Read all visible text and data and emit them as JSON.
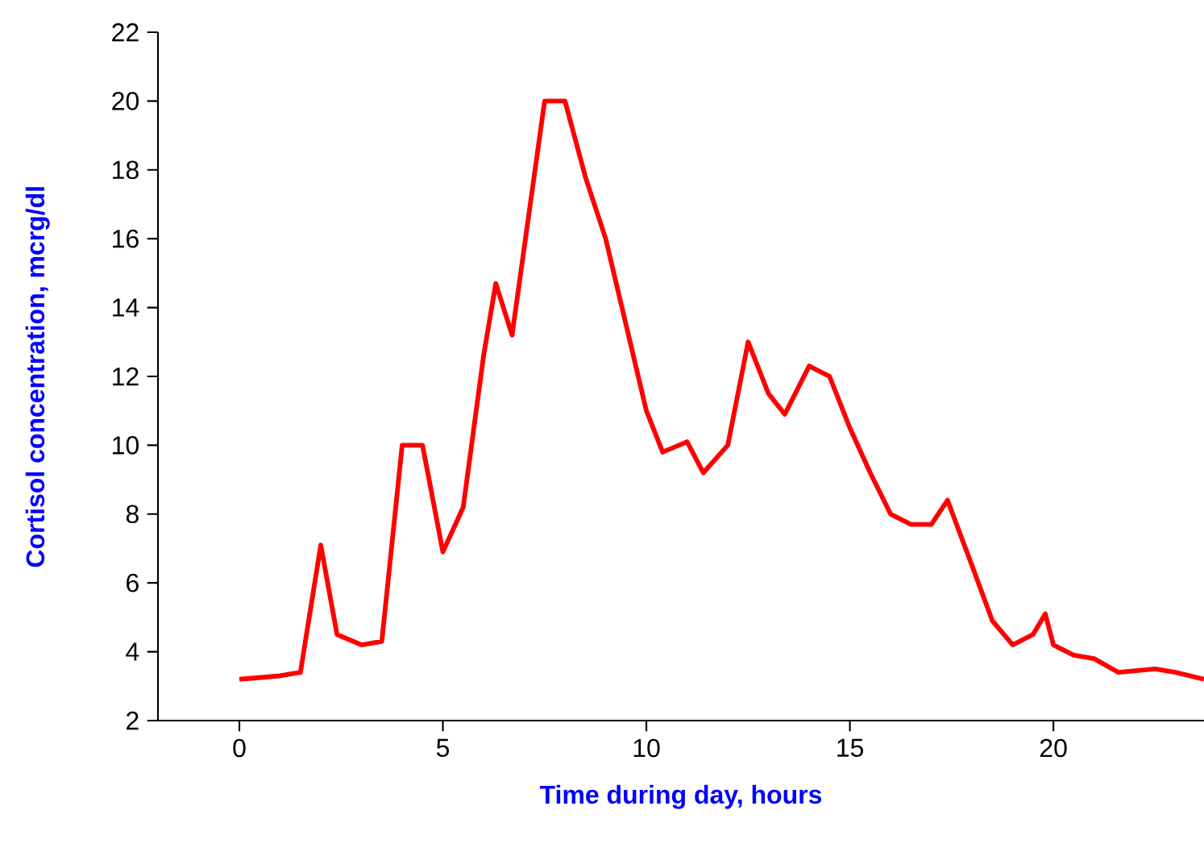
{
  "chart_data": {
    "type": "line",
    "xlabel": "Time during day, hours",
    "ylabel": "Cortisol concentration, mcrg/dl",
    "x": [
      0,
      1,
      1.5,
      2.0,
      2.4,
      3,
      3.5,
      4,
      4.5,
      5,
      5.5,
      6,
      6.3,
      6.7,
      7.5,
      8,
      8.5,
      9,
      10,
      10.4,
      11,
      11.4,
      12,
      12.5,
      13,
      13.4,
      14,
      14.5,
      15,
      15.5,
      16,
      16.5,
      17,
      17.4,
      18,
      18.5,
      19,
      19.5,
      19.8,
      20,
      20.5,
      21,
      21.6,
      22.5,
      23,
      23.7
    ],
    "values": [
      3.2,
      3.3,
      3.4,
      7.1,
      4.5,
      4.2,
      4.3,
      10.0,
      10.0,
      6.9,
      8.2,
      12.6,
      14.7,
      13.2,
      20.0,
      20.0,
      17.8,
      16.0,
      11.0,
      9.8,
      10.1,
      9.2,
      10.0,
      13.0,
      11.5,
      10.9,
      12.3,
      12.0,
      10.5,
      9.2,
      8.0,
      7.7,
      7.7,
      8.4,
      6.5,
      4.9,
      4.2,
      4.5,
      5.1,
      4.2,
      3.9,
      3.8,
      3.4,
      3.5,
      3.4,
      3.2
    ],
    "color": "#ff0000",
    "line_style": "solid",
    "xlim": [
      -2,
      23.7
    ],
    "ylim": [
      2,
      22
    ],
    "xticks": [
      0,
      5,
      10,
      15,
      20
    ],
    "yticks": [
      2,
      4,
      6,
      8,
      10,
      12,
      14,
      16,
      18,
      20,
      22
    ]
  }
}
